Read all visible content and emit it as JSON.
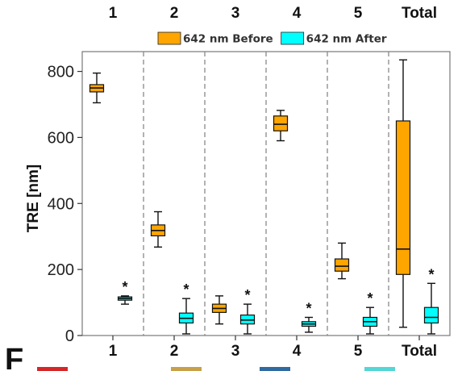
{
  "chart_data": {
    "type": "box",
    "title": "",
    "xlabel": "",
    "ylabel": "TRE [nm]",
    "ylim": [
      0,
      860
    ],
    "yticks": [
      0,
      200,
      400,
      600,
      800
    ],
    "categories": [
      "1",
      "2",
      "3",
      "4",
      "5",
      "Total"
    ],
    "top_labels": [
      "1",
      "2",
      "3",
      "4",
      "5",
      "Total"
    ],
    "grid": false,
    "group_separators": "dashed",
    "legend": {
      "placement": "top-center"
    },
    "series": [
      {
        "name": "642 nm Before",
        "color": "#FFA500",
        "boxes": [
          {
            "min": 705,
            "q1": 738,
            "median": 750,
            "q3": 760,
            "max": 795
          },
          {
            "min": 268,
            "q1": 302,
            "median": 318,
            "q3": 335,
            "max": 375
          },
          {
            "min": 35,
            "q1": 70,
            "median": 82,
            "q3": 95,
            "max": 120
          },
          {
            "min": 590,
            "q1": 620,
            "median": 640,
            "q3": 665,
            "max": 682
          },
          {
            "min": 172,
            "q1": 195,
            "median": 210,
            "q3": 232,
            "max": 280
          },
          {
            "min": 25,
            "q1": 185,
            "median": 262,
            "q3": 650,
            "max": 835
          }
        ]
      },
      {
        "name": "642 nm After",
        "color": "#00FFFF",
        "boxes": [
          {
            "min": 95,
            "q1": 107,
            "median": 112,
            "q3": 117,
            "max": 120
          },
          {
            "min": 5,
            "q1": 38,
            "median": 52,
            "q3": 68,
            "max": 112
          },
          {
            "min": 5,
            "q1": 35,
            "median": 47,
            "q3": 62,
            "max": 95
          },
          {
            "min": 10,
            "q1": 28,
            "median": 35,
            "q3": 42,
            "max": 55
          },
          {
            "min": 5,
            "q1": 28,
            "median": 42,
            "q3": 55,
            "max": 85
          },
          {
            "min": 5,
            "q1": 38,
            "median": 55,
            "q3": 85,
            "max": 158
          }
        ]
      }
    ],
    "annotations": [
      "*",
      "*",
      "*",
      "*",
      "*",
      "*"
    ],
    "panel_label": "F"
  }
}
